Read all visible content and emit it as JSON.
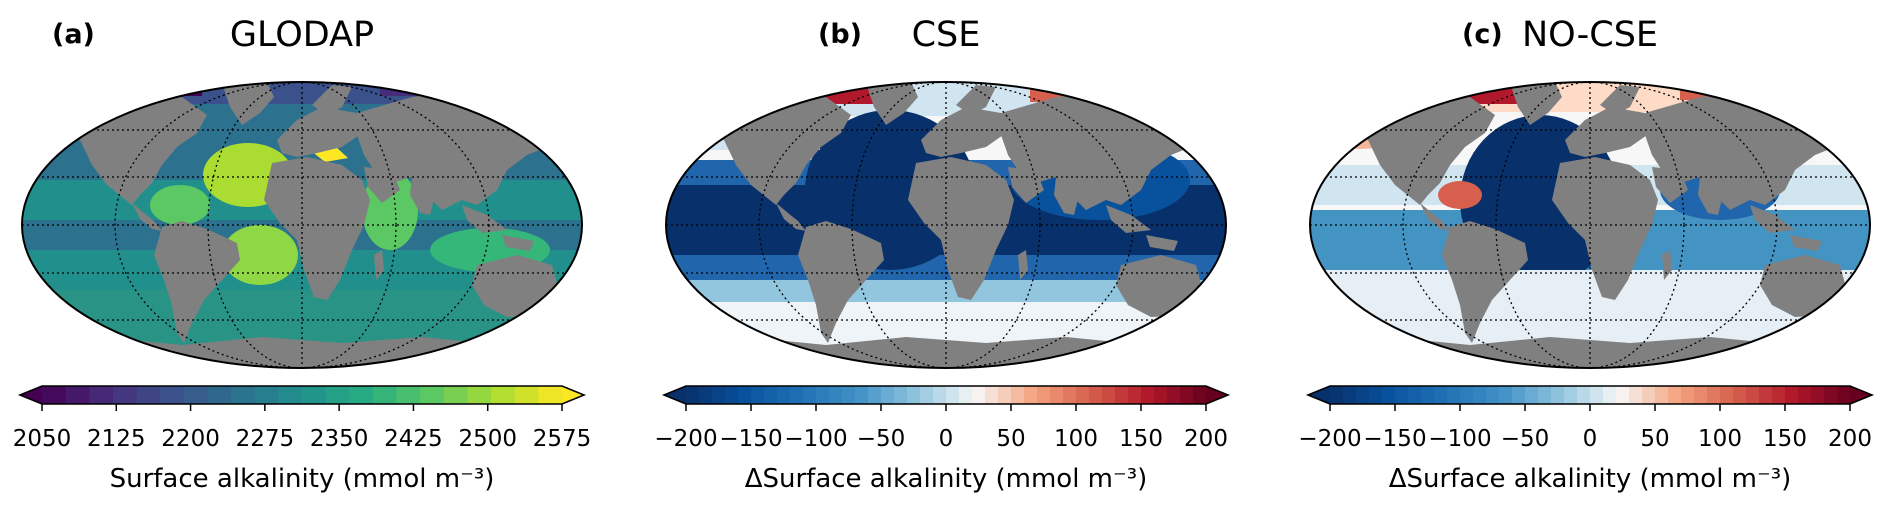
{
  "panels": [
    {
      "label": "(a)",
      "title": "GLODAP",
      "colormap": "viridis",
      "colors": [
        "#440154",
        "#472c7a",
        "#3b518b",
        "#2c718e",
        "#21908d",
        "#27ad81",
        "#5cc863",
        "#aadc32",
        "#fde725"
      ],
      "colorbar_ticks": [
        "2050",
        "2125",
        "2200",
        "2275",
        "2350",
        "2425",
        "2500",
        "2575"
      ],
      "colorbar_range": [
        2050,
        2575
      ],
      "colorbar_levels": 22,
      "colorbar_label": "Surface alkalinity (mmol m⁻³)"
    },
    {
      "label": "(b)",
      "title": "CSE",
      "colormap": "RdBu_r",
      "colors": [
        "#08306b",
        "#08519c",
        "#2171b5",
        "#4292c6",
        "#92c5de",
        "#f7f7f7",
        "#f4a582",
        "#d6604d",
        "#b2182b",
        "#67001f"
      ],
      "colorbar_ticks": [
        "−200",
        "−150",
        "−100",
        "−50",
        "0",
        "50",
        "100",
        "150",
        "200"
      ],
      "colorbar_range": [
        -200,
        200
      ],
      "colorbar_levels": 40,
      "colorbar_label": "ΔSurface alkalinity (mmol m⁻³)"
    },
    {
      "label": "(c)",
      "title": "NO-CSE",
      "colormap": "RdBu_r",
      "colors": [
        "#08306b",
        "#08519c",
        "#2171b5",
        "#4292c6",
        "#92c5de",
        "#f7f7f7",
        "#f4a582",
        "#d6604d",
        "#b2182b",
        "#67001f"
      ],
      "colorbar_ticks": [
        "−200",
        "−150",
        "−100",
        "−50",
        "0",
        "50",
        "100",
        "150",
        "200"
      ],
      "colorbar_range": [
        -200,
        200
      ],
      "colorbar_levels": 40,
      "colorbar_label": "ΔSurface alkalinity (mmol m⁻³)"
    }
  ],
  "map": {
    "projection": "Robinson",
    "land_color": "#808080",
    "gridlines": "dotted",
    "meridian_spacing_deg": 60,
    "parallel_spacing_deg": 30
  }
}
